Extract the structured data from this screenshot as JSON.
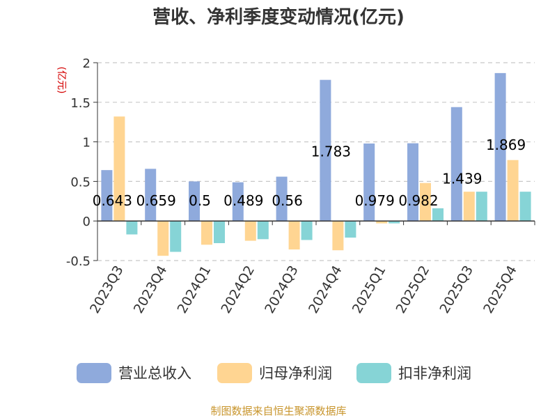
{
  "chart_data": {
    "type": "bar",
    "title": "营收、净利季度变动情况(亿元)",
    "ylabel": "(亿元)",
    "categories": [
      "2023Q3",
      "2023Q4",
      "2024Q1",
      "2024Q2",
      "2024Q3",
      "2024Q4",
      "2025Q1",
      "2025Q2",
      "2025Q3",
      "2025Q4"
    ],
    "series": [
      {
        "name": "营业总收入",
        "color": "#8faadc",
        "values": [
          0.643,
          0.659,
          0.5,
          0.489,
          0.56,
          1.783,
          0.979,
          0.982,
          1.439,
          1.869
        ]
      },
      {
        "name": "归母净利润",
        "color": "#ffd592",
        "values": [
          1.32,
          -0.44,
          -0.3,
          -0.25,
          -0.36,
          -0.37,
          -0.03,
          0.48,
          0.37,
          0.77
        ]
      },
      {
        "name": "扣非净利润",
        "color": "#86d4d6",
        "values": [
          -0.17,
          -0.39,
          -0.28,
          -0.23,
          -0.24,
          -0.21,
          -0.03,
          0.16,
          0.37,
          0.37
        ]
      }
    ],
    "data_labels": [
      "0.643",
      "0.659",
      "0.5",
      "0.489",
      "0.56",
      "1.783",
      "0.979",
      "0.982",
      "1.439",
      "1.869"
    ],
    "yticks": [
      "2",
      "1.5",
      "1",
      "0.5",
      "0",
      "-0.5"
    ],
    "ytick_values": [
      2,
      1.5,
      1,
      0.5,
      0,
      -0.5
    ],
    "ylim": [
      -0.5,
      2
    ],
    "grid": true,
    "legend_position": "bottom"
  },
  "source": "制图数据来自恒生聚源数据库"
}
